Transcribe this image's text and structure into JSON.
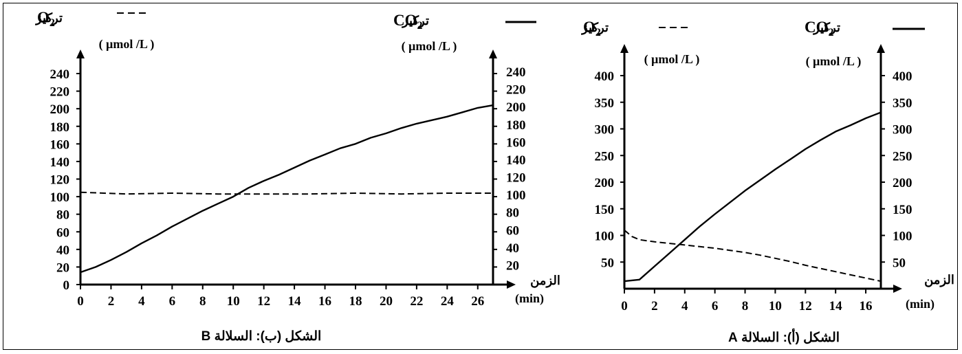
{
  "chart_data": [
    {
      "type": "line",
      "caption": "الشكل (ب): السلالة B",
      "xlabel": "الزمن",
      "xunit": "(min)",
      "x_ticks": [
        0,
        2,
        4,
        6,
        8,
        10,
        12,
        14,
        16,
        18,
        20,
        22,
        24,
        26
      ],
      "xlim": [
        0,
        27
      ],
      "left_axis": {
        "species": "O2",
        "label": "تركيز",
        "unit": "( µmol /L )",
        "ticks": [
          0,
          20,
          40,
          60,
          80,
          100,
          120,
          140,
          160,
          180,
          200,
          220,
          240
        ],
        "ylim": [
          0,
          240
        ]
      },
      "right_axis": {
        "species": "CO2",
        "label": "تركيز",
        "unit": "( µmol /L )",
        "ticks": [
          20,
          40,
          60,
          80,
          100,
          120,
          140,
          160,
          180,
          200,
          220,
          240
        ],
        "ylim": [
          0,
          240
        ]
      },
      "series": [
        {
          "name": "CO2",
          "style": "solid",
          "axis": "right",
          "x": [
            0,
            1,
            2,
            3,
            4,
            5,
            6,
            7,
            8,
            9,
            10,
            11,
            12,
            13,
            14,
            15,
            16,
            17,
            18,
            19,
            20,
            21,
            22,
            23,
            24,
            25,
            26,
            27
          ],
          "y": [
            14,
            20,
            28,
            37,
            47,
            56,
            66,
            75,
            84,
            92,
            100,
            110,
            118,
            125,
            133,
            141,
            148,
            155,
            160,
            167,
            172,
            178,
            183,
            187,
            191,
            196,
            201,
            204
          ]
        },
        {
          "name": "O2",
          "style": "dashed",
          "axis": "left",
          "x": [
            0,
            3,
            6,
            9,
            12,
            15,
            18,
            21,
            24,
            27
          ],
          "y": [
            105,
            103,
            104,
            103,
            103,
            103,
            104,
            103,
            104,
            104
          ]
        }
      ]
    },
    {
      "type": "line",
      "caption": "الشكل (أ): السلالة A",
      "xlabel": "الزمن",
      "xunit": "(min)",
      "x_ticks": [
        0,
        2,
        4,
        6,
        8,
        10,
        12,
        14,
        16
      ],
      "xlim": [
        0,
        17
      ],
      "left_axis": {
        "species": "O2",
        "label": "تركيز",
        "unit": "( µmol /L )",
        "ticks": [
          50,
          100,
          150,
          200,
          250,
          300,
          350,
          400
        ],
        "ylim": [
          0,
          400
        ]
      },
      "right_axis": {
        "species": "CO2",
        "label": "تركيز",
        "unit": "( µmol /L )",
        "ticks": [
          50,
          100,
          150,
          200,
          250,
          300,
          350,
          400
        ],
        "ylim": [
          0,
          400
        ]
      },
      "series": [
        {
          "name": "CO2",
          "style": "solid",
          "axis": "right",
          "x": [
            0,
            1,
            2,
            3,
            4,
            5,
            6,
            7,
            8,
            9,
            10,
            11,
            12,
            13,
            14,
            15,
            16,
            17
          ],
          "y": [
            14,
            17,
            42,
            67,
            92,
            117,
            140,
            162,
            184,
            204,
            224,
            243,
            262,
            279,
            295,
            307,
            320,
            331
          ]
        },
        {
          "name": "O2",
          "style": "dashed",
          "axis": "left",
          "x": [
            0,
            0.5,
            1,
            2,
            3,
            4,
            5,
            6,
            7,
            8,
            9,
            10,
            11,
            12,
            13,
            14,
            15,
            16,
            17
          ],
          "y": [
            110,
            98,
            92,
            88,
            85,
            82,
            79,
            76,
            72,
            68,
            63,
            57,
            51,
            44,
            38,
            32,
            26,
            20,
            14
          ]
        }
      ]
    }
  ]
}
